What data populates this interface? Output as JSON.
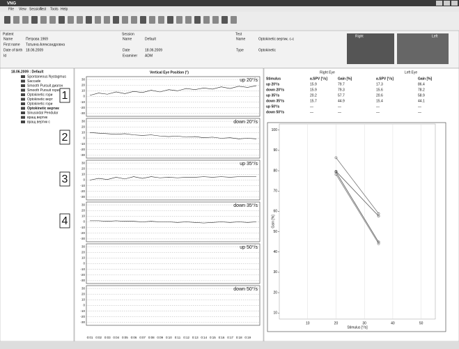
{
  "window": {
    "title": "VNG",
    "menu": [
      "File",
      "View",
      "Session",
      "Test",
      "Tools",
      "Help"
    ]
  },
  "patient": {
    "heading": "Patient",
    "fields": [
      {
        "label": "Name",
        "value": "Петрова 1969"
      },
      {
        "label": "First name",
        "value": "Татьяна Александровна"
      },
      {
        "label": "Date of birth",
        "value": "18.06.2009"
      },
      {
        "label": "Id"
      }
    ]
  },
  "session": {
    "heading": "Session",
    "fields": [
      {
        "label": "Name",
        "value": "Default"
      },
      {
        "label": "Date",
        "value": "18.06.2009"
      },
      {
        "label": "Examiner",
        "value": "ADM"
      }
    ]
  },
  "test": {
    "heading": "Test",
    "fields": [
      {
        "label": "Name",
        "value": "Optokinetic вертик. с-с"
      },
      {
        "label": "Type",
        "value": "Optokinetic"
      }
    ]
  },
  "camera": {
    "right": "Right",
    "left": "Left"
  },
  "tree": {
    "root": "18.06.2009 : Default",
    "items": [
      "Spontaneous Nystagmus",
      "Saccade",
      "Smooth Pursuit диагон",
      "Smooth Pursuit горизо",
      "Optokinetic гори",
      "Optokinetic верт",
      "Optokinetic гори",
      "Optokinetic вертик",
      "Sinusoidal Pendular",
      "вращ вертик",
      "вращ вертик с"
    ]
  },
  "waveform": {
    "title": "Vertical Eye Position (°)",
    "ylim": [
      -35,
      35
    ],
    "yticks": [
      30,
      20,
      10,
      0,
      -10,
      -20,
      -30
    ],
    "xticks": [
      "0:01",
      "0:02",
      "0:03",
      "0:04",
      "0:05",
      "0:06",
      "0:07",
      "0:08",
      "0:09",
      "0:10",
      "0:11",
      "0:12",
      "0:13",
      "0:14",
      "0:15",
      "0:16",
      "0:17",
      "0:18",
      "0:19"
    ],
    "panels": [
      {
        "label": "up 20°/s",
        "marker": "1",
        "trace": [
          2,
          6,
          4,
          8,
          5,
          9,
          7,
          11,
          8,
          12,
          10,
          14,
          12,
          15,
          13,
          17,
          14,
          18,
          16,
          19
        ]
      },
      {
        "label": "down 20°/s",
        "marker": "2",
        "trace": [
          10,
          9,
          8,
          7,
          8,
          6,
          5,
          6,
          4,
          3,
          4,
          2,
          3,
          1,
          2,
          0,
          1,
          -1,
          0,
          -1
        ]
      },
      {
        "label": "up 35°/s",
        "marker": "3",
        "trace": [
          0,
          3,
          1,
          5,
          2,
          6,
          3,
          6,
          4,
          5,
          4,
          5,
          5,
          6,
          5,
          6,
          5,
          6,
          6,
          6
        ]
      },
      {
        "label": "down 35°/s",
        "marker": "4",
        "trace": [
          2,
          2,
          1,
          2,
          1,
          1,
          0,
          1,
          0,
          0,
          -1,
          0,
          -1,
          -2,
          -1,
          0,
          -1,
          0,
          -1,
          0
        ]
      },
      {
        "label": "up 50°/s"
      },
      {
        "label": "down 50°/s"
      }
    ]
  },
  "results": {
    "groups": [
      "Right Eye",
      "Left Eye"
    ],
    "columns": [
      "Stimulus",
      "a.SPV [°/s]",
      "Gain [%]",
      "a.SPV [°/s]",
      "Gain [%]"
    ],
    "rows": [
      [
        "up 20°/s",
        "15.9",
        "79.7",
        "17.3",
        "86.4"
      ],
      [
        "down 20°/s",
        "15.9",
        "79.3",
        "15.6",
        "78.2"
      ],
      [
        "up 35°/s",
        "20.2",
        "57.7",
        "20.6",
        "58.9"
      ],
      [
        "down 35°/s",
        "15.7",
        "44.9",
        "15.4",
        "44.1"
      ],
      [
        "up 50°/s",
        "—",
        "—",
        "—",
        "—"
      ],
      [
        "down 50°/s",
        "—",
        "—",
        "—",
        "—"
      ]
    ]
  },
  "chart_data": {
    "type": "line",
    "xlabel": "Stimulus [°/s]",
    "ylabel": "Gain [%]",
    "xlim": [
      0,
      55
    ],
    "ylim": [
      7,
      103
    ],
    "xticks": [
      10,
      20,
      30,
      40,
      50
    ],
    "yticks": [
      10,
      20,
      30,
      40,
      50,
      60,
      70,
      80,
      90,
      100
    ],
    "x": [
      20,
      35
    ],
    "series": [
      {
        "color": "#555555",
        "values": [
          79.7,
          57.7
        ]
      },
      {
        "color": "#777777",
        "values": [
          86.4,
          58.9
        ]
      },
      {
        "color": "#555555",
        "values": [
          79.3,
          44.9
        ]
      },
      {
        "color": "#777777",
        "values": [
          78.2,
          44.1
        ]
      }
    ]
  }
}
